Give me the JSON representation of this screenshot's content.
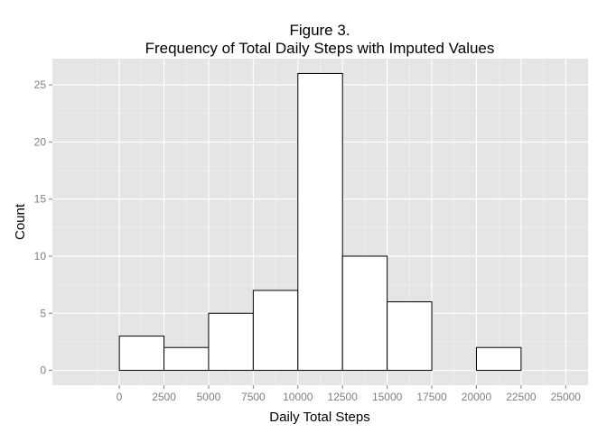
{
  "chart_data": {
    "type": "bar",
    "title": "Figure 3.",
    "subtitle": "Frequency of Total Daily Steps with Imputed Values",
    "xlabel": "Daily Total Steps",
    "ylabel": "Count",
    "bin_width": 2500,
    "bins": [
      {
        "start": -2500,
        "end": 0,
        "count": 0
      },
      {
        "start": 0,
        "end": 2500,
        "count": 3
      },
      {
        "start": 2500,
        "end": 5000,
        "count": 2
      },
      {
        "start": 5000,
        "end": 7500,
        "count": 5
      },
      {
        "start": 7500,
        "end": 10000,
        "count": 7
      },
      {
        "start": 10000,
        "end": 12500,
        "count": 26
      },
      {
        "start": 12500,
        "end": 15000,
        "count": 10
      },
      {
        "start": 15000,
        "end": 17500,
        "count": 6
      },
      {
        "start": 17500,
        "end": 20000,
        "count": 0
      },
      {
        "start": 20000,
        "end": 22500,
        "count": 2
      },
      {
        "start": 22500,
        "end": 25000,
        "count": 0
      }
    ],
    "x_ticks": [
      0,
      2500,
      5000,
      7500,
      10000,
      12500,
      15000,
      17500,
      20000,
      22500,
      25000
    ],
    "y_ticks": [
      0,
      5,
      10,
      15,
      20,
      25
    ],
    "xlim": [
      -3750,
      26250
    ],
    "ylim": [
      -1.3,
      27.3
    ],
    "grid": true,
    "colors": {
      "panel": "#e5e5e5",
      "grid_major": "#ffffff",
      "grid_minor": "#f2f2f2",
      "bar_fill": "#ffffff",
      "bar_stroke": "#000000",
      "tick_text": "#7f7f7f"
    }
  }
}
